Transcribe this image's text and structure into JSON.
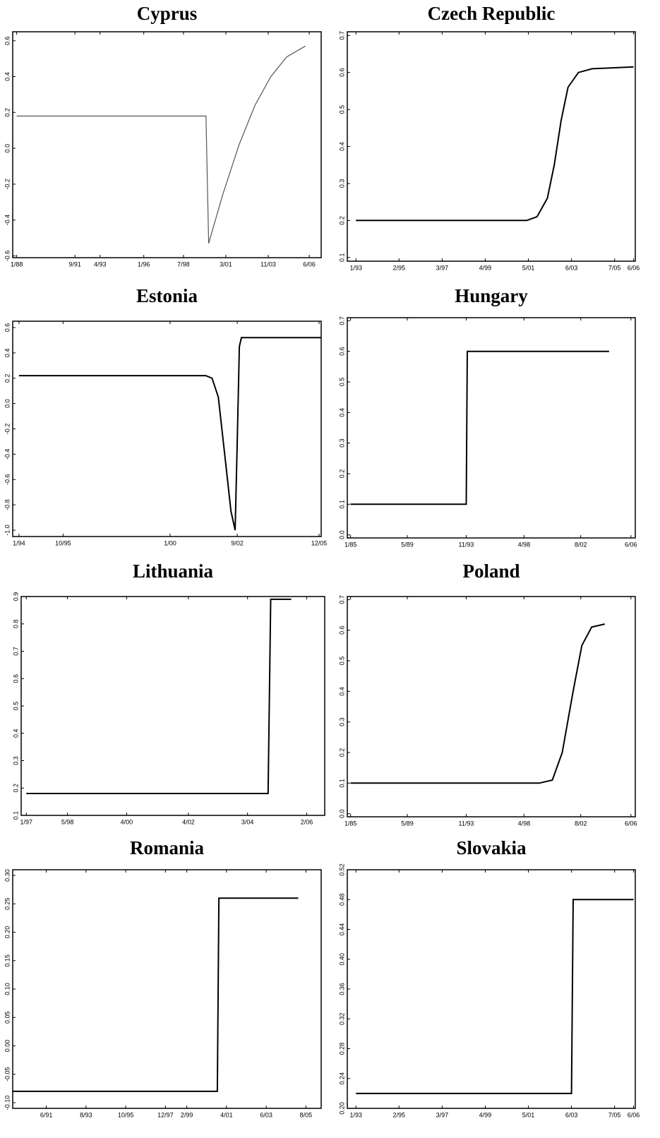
{
  "chart_data": [
    {
      "type": "line",
      "title": "Cyprus",
      "color": "#555555",
      "x": [
        "1988-01",
        "1999-12",
        "2000-02",
        "2001-01",
        "2002-01",
        "2003-01",
        "2004-01",
        "2005-01",
        "2006-03"
      ],
      "values": [
        0.18,
        0.18,
        -0.53,
        -0.25,
        0.02,
        0.24,
        0.4,
        0.51,
        0.57
      ],
      "xlim": [
        "1987-10",
        "2007-03"
      ],
      "xticks": [
        {
          "value": "1988-01",
          "label": "1/88"
        },
        {
          "value": "1991-09",
          "label": "9/91"
        },
        {
          "value": "1993-04",
          "label": "4/93"
        },
        {
          "value": "1996-01",
          "label": "1/96"
        },
        {
          "value": "1998-07",
          "label": "7/98"
        },
        {
          "value": "2001-03",
          "label": "3/01"
        },
        {
          "value": "2003-11",
          "label": "11/03"
        },
        {
          "value": "2006-06",
          "label": "6/06"
        }
      ],
      "ylim": [
        -0.61,
        0.65
      ],
      "yticks": [
        0.6,
        0.4,
        0.2,
        {
          "value": 0,
          "label": "0.0"
        },
        -0.2,
        -0.4,
        -0.6
      ]
    },
    {
      "type": "line",
      "title": "Czech Republic",
      "color": "#000000",
      "x": [
        "1993-01",
        "2001-04",
        "2001-10",
        "2002-04",
        "2002-08",
        "2002-12",
        "2003-04",
        "2003-10",
        "2004-06",
        "2006-06"
      ],
      "values": [
        0.2,
        0.2,
        0.21,
        0.26,
        0.35,
        0.47,
        0.56,
        0.6,
        0.61,
        0.615
      ],
      "xlim": [
        "1992-08",
        "2006-07"
      ],
      "xticks": [
        {
          "value": "1993-01",
          "label": "1/93"
        },
        {
          "value": "1995-02",
          "label": "2/95"
        },
        {
          "value": "1997-03",
          "label": "3/97"
        },
        {
          "value": "1999-04",
          "label": "4/99"
        },
        {
          "value": "2001-05",
          "label": "5/01"
        },
        {
          "value": "2003-06",
          "label": "6/03"
        },
        {
          "value": "2005-07",
          "label": "7/05"
        },
        {
          "value": "2006-06",
          "label": "6/06"
        }
      ],
      "ylim": [
        0.09,
        0.71
      ],
      "yticks": [
        0.7,
        0.6,
        0.5,
        0.4,
        0.3,
        0.2,
        0.1
      ]
    },
    {
      "type": "line",
      "title": "Estonia",
      "color": "#000000",
      "x": [
        "1994-01",
        "2001-06",
        "2001-09",
        "2001-12",
        "2002-03",
        "2002-06",
        "2002-08",
        "2002-09",
        "2002-10",
        "2002-11",
        "2006-01"
      ],
      "values": [
        0.22,
        0.22,
        0.2,
        0.05,
        -0.4,
        -0.85,
        -1.0,
        -0.3,
        0.45,
        0.52,
        0.52
      ],
      "xlim": [
        "1993-10",
        "2006-01"
      ],
      "xticks": [
        {
          "value": "1994-01",
          "label": "1/94"
        },
        {
          "value": "1995-10",
          "label": "10/95"
        },
        {
          "value": "2000-01",
          "label": "1/00"
        },
        {
          "value": "2002-09",
          "label": "9/02"
        },
        {
          "value": "2005-12",
          "label": "12/05"
        }
      ],
      "ylim": [
        -1.05,
        0.65
      ],
      "yticks": [
        0.6,
        0.4,
        0.2,
        {
          "value": 0,
          "label": "0.0"
        },
        -0.2,
        -0.4,
        -0.6,
        -0.8,
        {
          "value": -1,
          "label": "-1.0"
        }
      ]
    },
    {
      "type": "line",
      "title": "Hungary",
      "color": "#000000",
      "x": [
        "1985-01",
        "1993-11",
        "1993-12",
        "2004-10"
      ],
      "values": [
        0.1,
        0.1,
        0.6,
        0.6
      ],
      "xlim": [
        "1984-10",
        "2006-10"
      ],
      "xticks": [
        {
          "value": "1985-01",
          "label": "1/85"
        },
        {
          "value": "1989-05",
          "label": "5/89"
        },
        {
          "value": "1993-11",
          "label": "11/93"
        },
        {
          "value": "1998-04",
          "label": "4/98"
        },
        {
          "value": "2002-08",
          "label": "8/02"
        },
        {
          "value": "2006-06",
          "label": "6/06"
        }
      ],
      "ylim": [
        -0.01,
        0.71
      ],
      "yticks": [
        0.7,
        0.6,
        0.5,
        0.4,
        0.3,
        0.2,
        0.1,
        {
          "value": 0,
          "label": "0.0"
        }
      ]
    },
    {
      "type": "line",
      "title": "Lithuania",
      "color": "#000000",
      "x": [
        "1997-01",
        "2004-11",
        "2004-12",
        "2005-08"
      ],
      "values": [
        0.18,
        0.18,
        0.89,
        0.89
      ],
      "xlim": [
        "1996-11",
        "2006-09"
      ],
      "xticks": [
        {
          "value": "1997-01",
          "label": "1/97"
        },
        {
          "value": "1998-05",
          "label": "5/98"
        },
        {
          "value": "2000-04",
          "label": "4/00"
        },
        {
          "value": "2002-04",
          "label": "4/02"
        },
        {
          "value": "2004-03",
          "label": "3/04"
        },
        {
          "value": "2006-02",
          "label": "2/06"
        }
      ],
      "ylim": [
        0.1,
        0.9
      ],
      "yticks": [
        0.9,
        0.8,
        0.7,
        0.6,
        0.5,
        0.4,
        0.3,
        0.2,
        0.1
      ]
    },
    {
      "type": "line",
      "title": "Poland",
      "color": "#000000",
      "x": [
        "1985-01",
        "1999-06",
        "2000-06",
        "2001-03",
        "2002-01",
        "2002-09",
        "2003-06",
        "2004-06"
      ],
      "values": [
        0.1,
        0.1,
        0.11,
        0.2,
        0.4,
        0.55,
        0.61,
        0.62
      ],
      "xlim": [
        "1984-10",
        "2006-10"
      ],
      "xticks": [
        {
          "value": "1985-01",
          "label": "1/85"
        },
        {
          "value": "1989-05",
          "label": "5/89"
        },
        {
          "value": "1993-11",
          "label": "11/93"
        },
        {
          "value": "1998-04",
          "label": "4/98"
        },
        {
          "value": "2002-08",
          "label": "8/02"
        },
        {
          "value": "2006-06",
          "label": "6/06"
        }
      ],
      "ylim": [
        -0.01,
        0.71
      ],
      "yticks": [
        0.7,
        0.6,
        0.5,
        0.4,
        0.3,
        0.2,
        0.1,
        {
          "value": 0,
          "label": "0.0"
        }
      ]
    },
    {
      "type": "line",
      "title": "Romania",
      "color": "#000000",
      "x": [
        "1989-08",
        "2000-10",
        "2000-11",
        "2005-03"
      ],
      "values": [
        -0.08,
        -0.08,
        0.26,
        0.26
      ],
      "xlim": [
        "1989-08",
        "2006-06"
      ],
      "xticks": [
        {
          "value": "1991-06",
          "label": "6/91"
        },
        {
          "value": "1993-08",
          "label": "8/93"
        },
        {
          "value": "1995-10",
          "label": "10/95"
        },
        {
          "value": "1997-12",
          "label": "12/97"
        },
        {
          "value": "1999-02",
          "label": "2/99"
        },
        {
          "value": "2001-04",
          "label": "4/01"
        },
        {
          "value": "2003-06",
          "label": "6/03"
        },
        {
          "value": "2005-08",
          "label": "8/05"
        }
      ],
      "ylim": [
        -0.11,
        0.31
      ],
      "yticks": [
        {
          "value": -0.1,
          "label": "-0.10"
        },
        {
          "value": -0.05,
          "label": "-0.05"
        },
        {
          "value": 0,
          "label": "0.00"
        },
        {
          "value": 0.05,
          "label": "0.05"
        },
        {
          "value": 0.1,
          "label": "0.10"
        },
        0.15,
        {
          "value": 0.2,
          "label": "0.20"
        },
        0.25,
        {
          "value": 0.3,
          "label": "0.30"
        }
      ]
    },
    {
      "type": "line",
      "title": "Slovakia",
      "color": "#000000",
      "x": [
        "1993-01",
        "2003-06",
        "2003-07",
        "2006-06"
      ],
      "values": [
        0.22,
        0.22,
        0.48,
        0.48
      ],
      "xlim": [
        "1992-08",
        "2006-07"
      ],
      "xticks": [
        {
          "value": "1993-01",
          "label": "1/93"
        },
        {
          "value": "1995-02",
          "label": "2/95"
        },
        {
          "value": "1997-03",
          "label": "3/97"
        },
        {
          "value": "1999-04",
          "label": "4/99"
        },
        {
          "value": "2001-05",
          "label": "5/01"
        },
        {
          "value": "2003-06",
          "label": "6/03"
        },
        {
          "value": "2005-07",
          "label": "7/05"
        },
        {
          "value": "2006-06",
          "label": "6/06"
        }
      ],
      "ylim": [
        0.2,
        0.52
      ],
      "yticks": [
        {
          "value": 0.2,
          "label": "0.20"
        },
        0.24,
        0.28,
        0.32,
        0.36,
        {
          "value": 0.4,
          "label": "0.40"
        },
        0.44,
        0.48,
        0.52
      ]
    }
  ]
}
